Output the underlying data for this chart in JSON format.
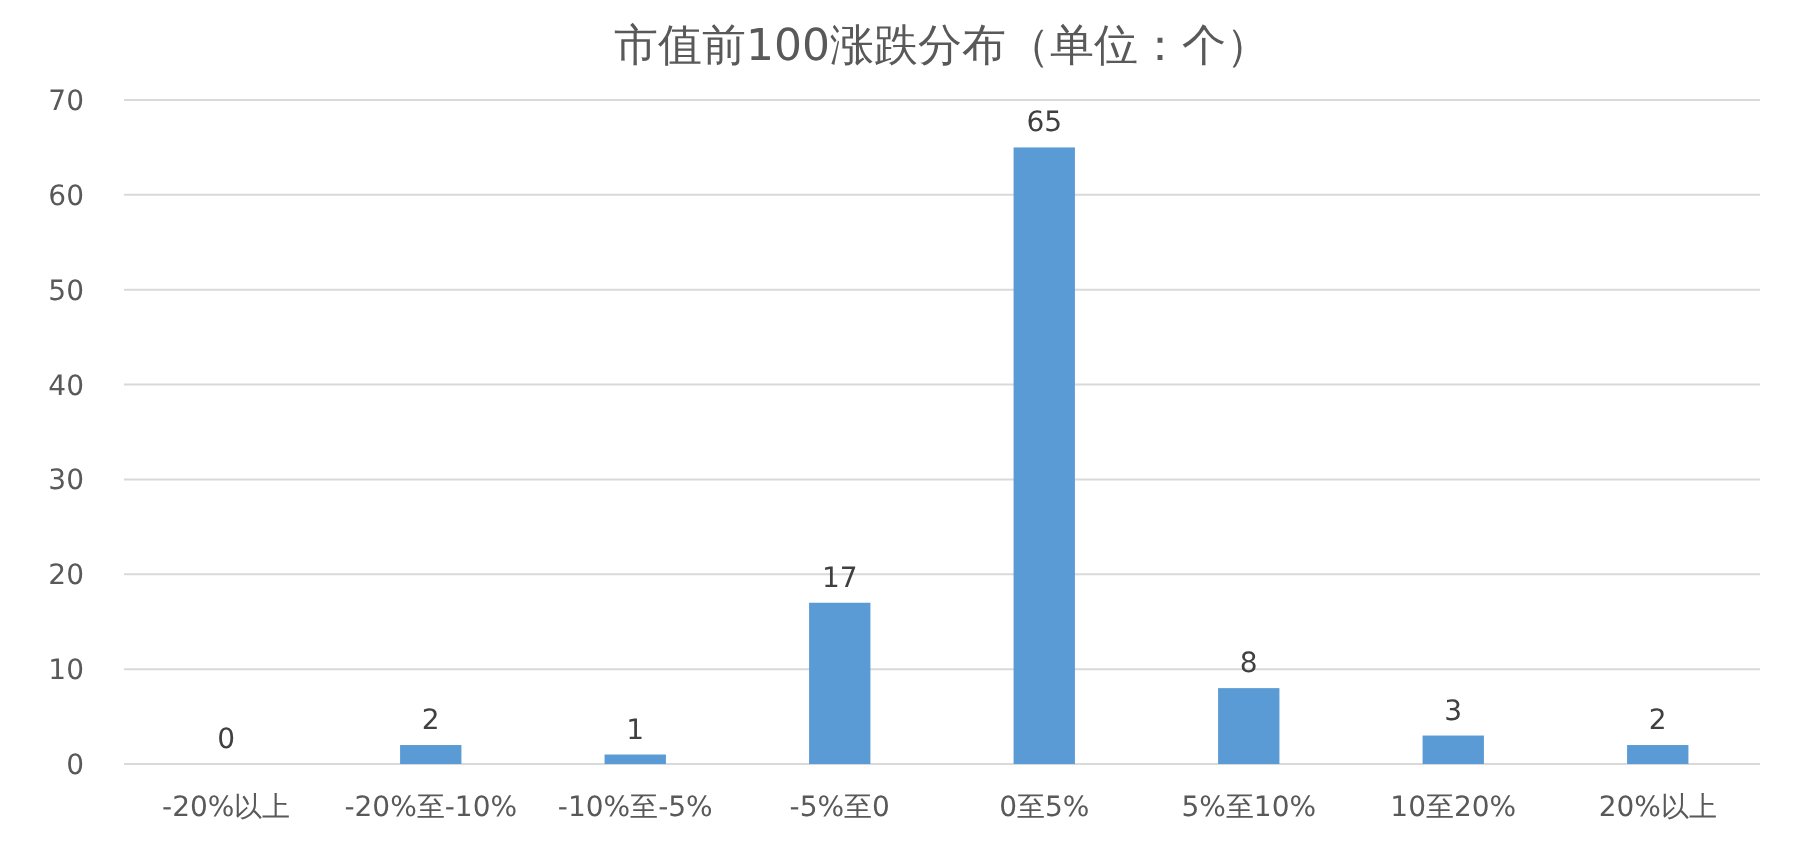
{
  "chart_data": {
    "type": "bar",
    "title": "市值前100涨跌分布（单位：个）",
    "categories": [
      "-20%以上",
      "-20%至-10%",
      "-10%至-5%",
      "-5%至0",
      "0至5%",
      "5%至10%",
      "10至20%",
      "20%以上"
    ],
    "values": [
      0,
      2,
      1,
      17,
      65,
      8,
      3,
      2
    ],
    "color": "#5b9bd5",
    "data_labels": true,
    "ylim": [
      0,
      70
    ],
    "yticks": [
      0,
      10,
      20,
      30,
      40,
      50,
      60,
      70
    ],
    "grid": "y"
  }
}
